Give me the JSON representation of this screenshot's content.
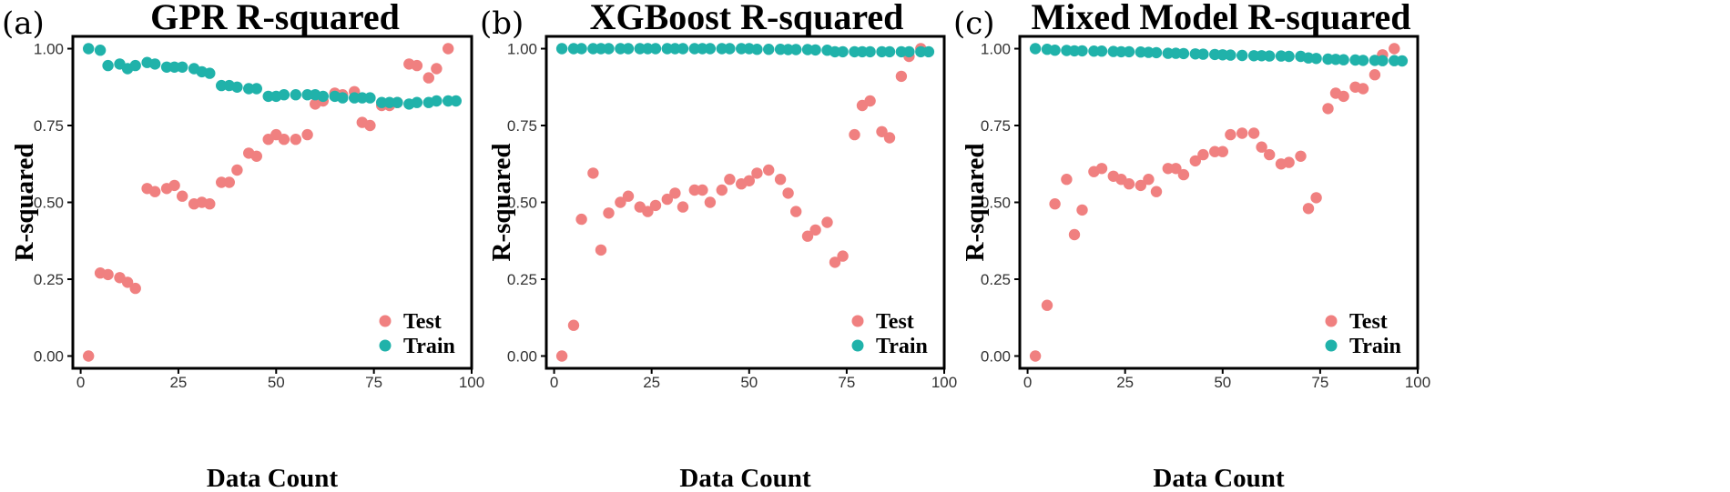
{
  "chart_data": [
    {
      "panel_label": "(a)",
      "type": "scatter",
      "title": "GPR R-squared",
      "xlabel": "Data Count",
      "ylabel": "R-squared",
      "xlim": [
        -2,
        100
      ],
      "ylim": [
        -0.04,
        1.04
      ],
      "xticks": [
        0,
        25,
        50,
        75,
        100
      ],
      "yticks": [
        "0.00",
        "0.25",
        "0.50",
        "0.75",
        "1.00"
      ],
      "legend_position": "bottom-right",
      "colors": {
        "Test": "#F08080",
        "Train": "#20B2AA"
      },
      "series": [
        {
          "name": "Test",
          "x": [
            2,
            5,
            7,
            10,
            12,
            14,
            17,
            19,
            22,
            24,
            26,
            29,
            31,
            33,
            36,
            38,
            40,
            43,
            45,
            48,
            50,
            52,
            55,
            58,
            60,
            62,
            65,
            67,
            70,
            72,
            74,
            77,
            79,
            81,
            84,
            86,
            89,
            91,
            94
          ],
          "y": [
            0.0,
            0.27,
            0.265,
            0.255,
            0.24,
            0.22,
            0.545,
            0.535,
            0.545,
            0.555,
            0.52,
            0.495,
            0.5,
            0.495,
            0.565,
            0.565,
            0.605,
            0.66,
            0.65,
            0.705,
            0.72,
            0.705,
            0.705,
            0.72,
            0.82,
            0.83,
            0.855,
            0.85,
            0.86,
            0.76,
            0.75,
            0.815,
            0.815,
            0.825,
            0.95,
            0.945,
            0.905,
            0.935,
            1.0
          ]
        },
        {
          "name": "Train",
          "x": [
            2,
            5,
            7,
            10,
            12,
            14,
            17,
            19,
            22,
            24,
            26,
            29,
            31,
            33,
            36,
            38,
            40,
            43,
            45,
            48,
            50,
            52,
            55,
            58,
            60,
            62,
            65,
            67,
            70,
            72,
            74,
            77,
            79,
            81,
            84,
            86,
            89,
            91,
            94,
            96
          ],
          "y": [
            1.0,
            0.995,
            0.945,
            0.95,
            0.935,
            0.945,
            0.955,
            0.95,
            0.94,
            0.94,
            0.94,
            0.935,
            0.925,
            0.92,
            0.88,
            0.88,
            0.875,
            0.87,
            0.87,
            0.845,
            0.845,
            0.85,
            0.85,
            0.85,
            0.85,
            0.845,
            0.845,
            0.84,
            0.84,
            0.84,
            0.84,
            0.825,
            0.825,
            0.825,
            0.82,
            0.825,
            0.825,
            0.83,
            0.83,
            0.83
          ]
        }
      ]
    },
    {
      "panel_label": "(b)",
      "type": "scatter",
      "title": "XGBoost R-squared",
      "xlabel": "Data Count",
      "ylabel": "R-squared",
      "xlim": [
        -2,
        100
      ],
      "ylim": [
        -0.04,
        1.04
      ],
      "xticks": [
        0,
        25,
        50,
        75,
        100
      ],
      "yticks": [
        "0.00",
        "0.25",
        "0.50",
        "0.75",
        "1.00"
      ],
      "legend_position": "bottom-right",
      "colors": {
        "Test": "#F08080",
        "Train": "#20B2AA"
      },
      "series": [
        {
          "name": "Test",
          "x": [
            2,
            5,
            7,
            10,
            12,
            14,
            17,
            19,
            22,
            24,
            26,
            29,
            31,
            33,
            36,
            38,
            40,
            43,
            45,
            48,
            50,
            52,
            55,
            58,
            60,
            62,
            65,
            67,
            70,
            72,
            74,
            77,
            79,
            81,
            84,
            86,
            89,
            91,
            94
          ],
          "y": [
            0.0,
            0.1,
            0.445,
            0.595,
            0.345,
            0.465,
            0.5,
            0.52,
            0.485,
            0.47,
            0.49,
            0.51,
            0.53,
            0.485,
            0.54,
            0.54,
            0.5,
            0.54,
            0.575,
            0.56,
            0.57,
            0.595,
            0.605,
            0.575,
            0.53,
            0.47,
            0.39,
            0.41,
            0.435,
            0.305,
            0.325,
            0.72,
            0.815,
            0.83,
            0.73,
            0.71,
            0.91,
            0.975,
            1.0
          ]
        },
        {
          "name": "Train",
          "x": [
            2,
            5,
            7,
            10,
            12,
            14,
            17,
            19,
            22,
            24,
            26,
            29,
            31,
            33,
            36,
            38,
            40,
            43,
            45,
            48,
            50,
            52,
            55,
            58,
            60,
            62,
            65,
            67,
            70,
            72,
            74,
            77,
            79,
            81,
            84,
            86,
            89,
            91,
            94,
            96
          ],
          "y": [
            1.0,
            1.0,
            1.0,
            1.0,
            1.0,
            1.0,
            1.0,
            1.0,
            1.0,
            1.0,
            1.0,
            1.0,
            1.0,
            1.0,
            1.0,
            1.0,
            1.0,
            1.0,
            1.0,
            1.0,
            1.0,
            0.998,
            0.998,
            0.998,
            0.997,
            0.997,
            0.997,
            0.996,
            0.995,
            0.99,
            0.99,
            0.99,
            0.99,
            0.99,
            0.99,
            0.99,
            0.99,
            0.99,
            0.99,
            0.99
          ]
        }
      ]
    },
    {
      "panel_label": "(c)",
      "type": "scatter",
      "title": "Mixed Model R-squared",
      "xlabel": "Data Count",
      "ylabel": "R-squared",
      "xlim": [
        -2,
        100
      ],
      "ylim": [
        -0.04,
        1.04
      ],
      "xticks": [
        0,
        25,
        50,
        75,
        100
      ],
      "yticks": [
        "0.00",
        "0.25",
        "0.50",
        "0.75",
        "1.00"
      ],
      "legend_position": "bottom-right",
      "colors": {
        "Test": "#F08080",
        "Train": "#20B2AA"
      },
      "series": [
        {
          "name": "Test",
          "x": [
            2,
            5,
            7,
            10,
            12,
            14,
            17,
            19,
            22,
            24,
            26,
            29,
            31,
            33,
            36,
            38,
            40,
            43,
            45,
            48,
            50,
            52,
            55,
            58,
            60,
            62,
            65,
            67,
            70,
            72,
            74,
            77,
            79,
            81,
            84,
            86,
            89,
            91,
            94
          ],
          "y": [
            0.0,
            0.165,
            0.495,
            0.575,
            0.395,
            0.475,
            0.6,
            0.61,
            0.585,
            0.575,
            0.56,
            0.555,
            0.575,
            0.535,
            0.61,
            0.61,
            0.59,
            0.635,
            0.655,
            0.665,
            0.665,
            0.72,
            0.725,
            0.725,
            0.68,
            0.655,
            0.625,
            0.63,
            0.65,
            0.48,
            0.515,
            0.805,
            0.855,
            0.845,
            0.875,
            0.87,
            0.915,
            0.98,
            1.0
          ]
        },
        {
          "name": "Train",
          "x": [
            2,
            5,
            7,
            10,
            12,
            14,
            17,
            19,
            22,
            24,
            26,
            29,
            31,
            33,
            36,
            38,
            40,
            43,
            45,
            48,
            50,
            52,
            55,
            58,
            60,
            62,
            65,
            67,
            70,
            72,
            74,
            77,
            79,
            81,
            84,
            86,
            89,
            91,
            94,
            96
          ],
          "y": [
            1.0,
            0.998,
            0.995,
            0.994,
            0.993,
            0.993,
            0.992,
            0.992,
            0.991,
            0.99,
            0.99,
            0.989,
            0.988,
            0.987,
            0.985,
            0.985,
            0.984,
            0.983,
            0.982,
            0.981,
            0.98,
            0.979,
            0.978,
            0.977,
            0.977,
            0.976,
            0.976,
            0.975,
            0.975,
            0.97,
            0.968,
            0.966,
            0.965,
            0.964,
            0.963,
            0.962,
            0.962,
            0.961,
            0.961,
            0.96
          ]
        }
      ]
    }
  ]
}
